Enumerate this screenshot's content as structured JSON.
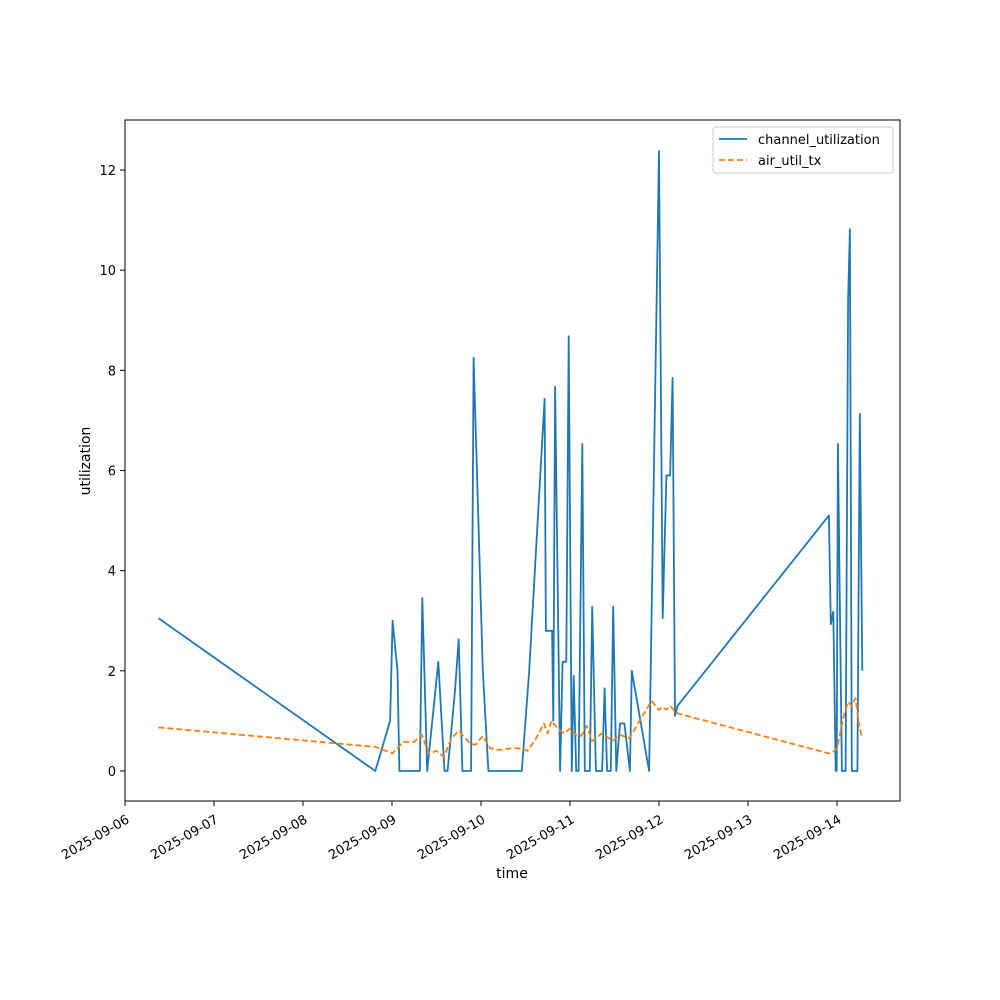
{
  "chart_data": {
    "type": "line",
    "title": "",
    "xlabel": "time",
    "ylabel": "utilization",
    "x_tick_labels": [
      "2025-09-06",
      "2025-09-07",
      "2025-09-08",
      "2025-09-09",
      "2025-09-10",
      "2025-09-11",
      "2025-09-12",
      "2025-09-13",
      "2025-09-14"
    ],
    "y_ticks": [
      0,
      2,
      4,
      6,
      8,
      10,
      12
    ],
    "xlim": [
      "2025-09-06 00:00",
      "2025-09-14 17:00"
    ],
    "ylim": [
      -0.6,
      13.0
    ],
    "grid": false,
    "legend_position": "top-right",
    "series": [
      {
        "name": "channel_utilization",
        "color": "#1f77b4",
        "style": "solid",
        "points": [
          [
            "2025-09-06 09:00",
            3.05
          ],
          [
            "2025-09-08 19:30",
            0
          ],
          [
            "2025-09-08 23:30",
            1.0
          ],
          [
            "2025-09-09 00:10",
            3.0
          ],
          [
            "2025-09-09 01:30",
            2.0
          ],
          [
            "2025-09-09 02:00",
            0
          ],
          [
            "2025-09-09 07:30",
            0
          ],
          [
            "2025-09-09 08:10",
            3.45
          ],
          [
            "2025-09-09 09:30",
            0
          ],
          [
            "2025-09-09 12:30",
            2.18
          ],
          [
            "2025-09-09 14:10",
            0
          ],
          [
            "2025-09-09 15:00",
            0
          ],
          [
            "2025-09-09 17:00",
            1.6
          ],
          [
            "2025-09-09 18:00",
            2.63
          ],
          [
            "2025-09-09 19:00",
            0
          ],
          [
            "2025-09-09 21:20",
            0
          ],
          [
            "2025-09-09 22:00",
            8.25
          ],
          [
            "2025-09-10 00:30",
            2.0
          ],
          [
            "2025-09-10 02:00",
            0
          ],
          [
            "2025-09-10 11:00",
            0
          ],
          [
            "2025-09-10 13:00",
            2.0
          ],
          [
            "2025-09-10 17:10",
            7.43
          ],
          [
            "2025-09-10 17:30",
            2.8
          ],
          [
            "2025-09-10 19:10",
            2.8
          ],
          [
            "2025-09-10 19:30",
            1.0
          ],
          [
            "2025-09-10 20:00",
            7.67
          ],
          [
            "2025-09-10 21:20",
            0
          ],
          [
            "2025-09-10 22:00",
            2.18
          ],
          [
            "2025-09-10 23:00",
            2.18
          ],
          [
            "2025-09-10 23:40",
            8.68
          ],
          [
            "2025-09-11 00:30",
            0
          ],
          [
            "2025-09-11 01:00",
            1.9
          ],
          [
            "2025-09-11 01:40",
            0
          ],
          [
            "2025-09-11 02:20",
            0
          ],
          [
            "2025-09-11 03:20",
            6.53
          ],
          [
            "2025-09-11 04:00",
            0
          ],
          [
            "2025-09-11 05:20",
            0
          ],
          [
            "2025-09-11 06:00",
            3.28
          ],
          [
            "2025-09-11 07:00",
            0
          ],
          [
            "2025-09-11 08:40",
            0
          ],
          [
            "2025-09-11 09:20",
            1.65
          ],
          [
            "2025-09-11 10:00",
            0
          ],
          [
            "2025-09-11 11:00",
            0
          ],
          [
            "2025-09-11 11:40",
            3.28
          ],
          [
            "2025-09-11 12:30",
            0
          ],
          [
            "2025-09-11 13:30",
            0.95
          ],
          [
            "2025-09-11 14:40",
            0.95
          ],
          [
            "2025-09-11 16:10",
            0
          ],
          [
            "2025-09-11 16:40",
            2.0
          ],
          [
            "2025-09-11 21:20",
            0
          ],
          [
            "2025-09-12 00:00",
            12.38
          ],
          [
            "2025-09-12 01:00",
            3.05
          ],
          [
            "2025-09-12 02:00",
            5.9
          ],
          [
            "2025-09-12 03:00",
            5.9
          ],
          [
            "2025-09-12 03:40",
            7.85
          ],
          [
            "2025-09-12 04:20",
            1.1
          ],
          [
            "2025-09-12 05:00",
            1.3
          ],
          [
            "2025-09-13 21:50",
            5.1
          ],
          [
            "2025-09-13 22:20",
            2.93
          ],
          [
            "2025-09-13 23:00",
            3.18
          ],
          [
            "2025-09-13 23:40",
            0
          ],
          [
            "2025-09-13 23:55",
            0
          ],
          [
            "2025-09-14 00:15",
            6.53
          ],
          [
            "2025-09-14 01:20",
            0
          ],
          [
            "2025-09-14 02:20",
            0
          ],
          [
            "2025-09-14 03:00",
            9.4
          ],
          [
            "2025-09-14 03:30",
            10.82
          ],
          [
            "2025-09-14 04:00",
            0
          ],
          [
            "2025-09-14 05:30",
            0
          ],
          [
            "2025-09-14 06:10",
            7.13
          ],
          [
            "2025-09-14 06:50",
            2.0
          ]
        ]
      },
      {
        "name": "air_util_tx",
        "color": "#ff7f0e",
        "style": "dashed",
        "points": [
          [
            "2025-09-06 09:00",
            0.87
          ],
          [
            "2025-09-08 19:30",
            0.48
          ],
          [
            "2025-09-09 00:10",
            0.35
          ],
          [
            "2025-09-09 03:00",
            0.58
          ],
          [
            "2025-09-09 06:00",
            0.58
          ],
          [
            "2025-09-09 08:00",
            0.72
          ],
          [
            "2025-09-09 10:00",
            0.35
          ],
          [
            "2025-09-09 12:00",
            0.4
          ],
          [
            "2025-09-09 14:00",
            0.28
          ],
          [
            "2025-09-09 16:00",
            0.65
          ],
          [
            "2025-09-09 18:00",
            0.8
          ],
          [
            "2025-09-09 21:00",
            0.55
          ],
          [
            "2025-09-09 22:30",
            0.52
          ],
          [
            "2025-09-10 00:30",
            0.7
          ],
          [
            "2025-09-10 02:30",
            0.45
          ],
          [
            "2025-09-10 05:00",
            0.42
          ],
          [
            "2025-09-10 08:00",
            0.45
          ],
          [
            "2025-09-10 11:00",
            0.45
          ],
          [
            "2025-09-10 12:30",
            0.4
          ],
          [
            "2025-09-10 14:30",
            0.6
          ],
          [
            "2025-09-10 17:00",
            0.95
          ],
          [
            "2025-09-10 18:00",
            0.75
          ],
          [
            "2025-09-10 19:00",
            1.0
          ],
          [
            "2025-09-10 21:00",
            0.82
          ],
          [
            "2025-09-10 22:30",
            0.75
          ],
          [
            "2025-09-11 00:00",
            0.85
          ],
          [
            "2025-09-11 01:40",
            0.72
          ],
          [
            "2025-09-11 03:00",
            0.7
          ],
          [
            "2025-09-11 04:30",
            0.9
          ],
          [
            "2025-09-11 06:00",
            0.6
          ],
          [
            "2025-09-11 07:00",
            0.65
          ],
          [
            "2025-09-11 08:30",
            0.75
          ],
          [
            "2025-09-11 10:00",
            0.68
          ],
          [
            "2025-09-11 11:30",
            0.6
          ],
          [
            "2025-09-11 13:30",
            0.72
          ],
          [
            "2025-09-11 16:00",
            0.65
          ],
          [
            "2025-09-11 18:00",
            0.9
          ],
          [
            "2025-09-11 20:00",
            1.15
          ],
          [
            "2025-09-11 22:00",
            1.4
          ],
          [
            "2025-09-12 00:00",
            1.22
          ],
          [
            "2025-09-12 01:00",
            1.28
          ],
          [
            "2025-09-12 02:00",
            1.22
          ],
          [
            "2025-09-12 03:00",
            1.3
          ],
          [
            "2025-09-12 04:00",
            1.22
          ],
          [
            "2025-09-12 05:00",
            1.15
          ],
          [
            "2025-09-13 21:50",
            0.35
          ],
          [
            "2025-09-13 23:00",
            0.38
          ],
          [
            "2025-09-14 00:00",
            0.45
          ],
          [
            "2025-09-14 02:00",
            1.15
          ],
          [
            "2025-09-14 03:00",
            1.38
          ],
          [
            "2025-09-14 04:00",
            1.3
          ],
          [
            "2025-09-14 05:00",
            1.45
          ],
          [
            "2025-09-14 06:00",
            0.9
          ],
          [
            "2025-09-14 06:50",
            0.65
          ]
        ]
      }
    ]
  }
}
